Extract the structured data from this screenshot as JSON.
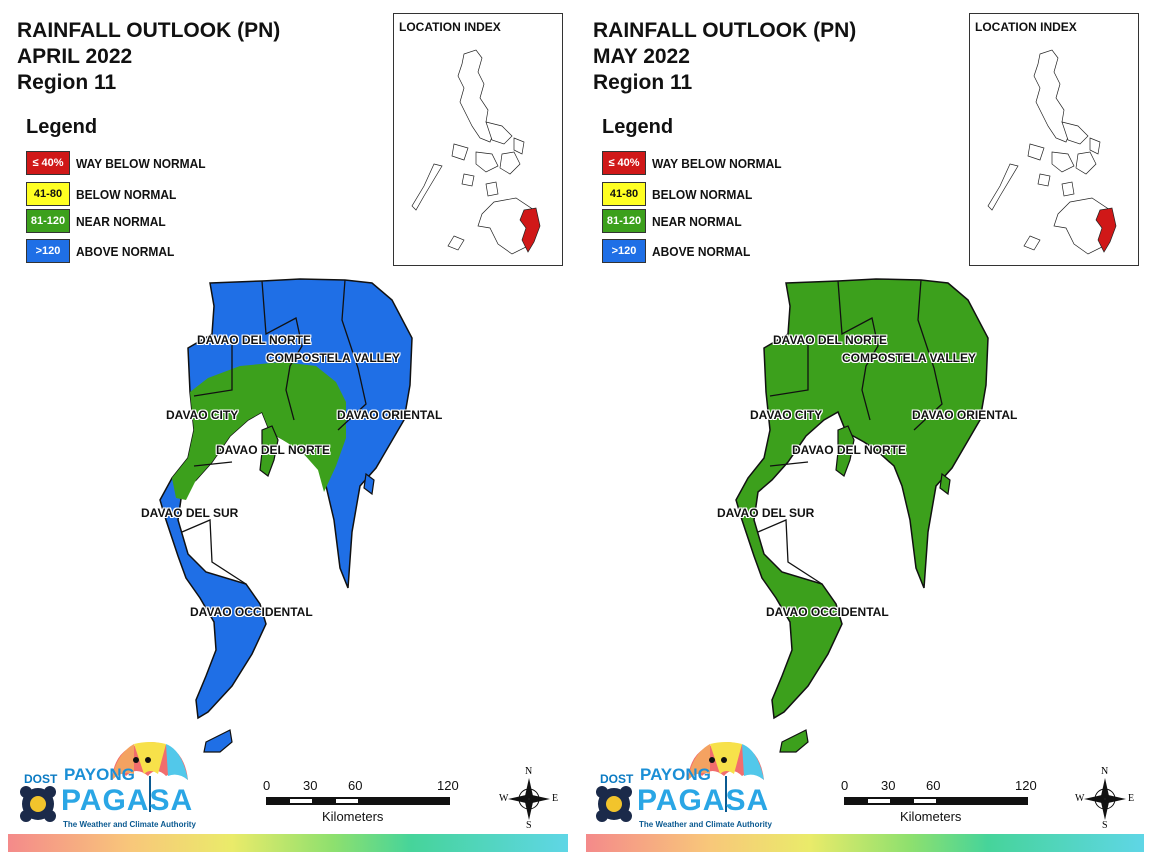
{
  "panels": [
    {
      "title_line1": "RAINFALL OUTLOOK (PN)",
      "title_line2": "APRIL 2022",
      "title_line3": "Region 11",
      "legend_heading": "Legend",
      "legend": [
        {
          "swatch": "≤ 40%",
          "label": "WAY BELOW NORMAL",
          "color": "#d01818"
        },
        {
          "swatch": "41-80",
          "label": "BELOW NORMAL",
          "color": "#ffff22"
        },
        {
          "swatch": "81-120",
          "label": "NEAR NORMAL",
          "color": "#3ca01c"
        },
        {
          "swatch": ">120",
          "label": "ABOVE NORMAL",
          "color": "#1f6fe6"
        }
      ],
      "location_index": "LOCATION INDEX",
      "map_fill": "#1f6fe6",
      "map_secondary_fill": "#3ca01c",
      "labels": {
        "davao_del_norte_top": "DAVAO DEL NORTE",
        "compostela_valley": "COMPOSTELA VALLEY",
        "davao_city": "DAVAO CITY",
        "davao_oriental": "DAVAO ORIENTAL",
        "davao_del_norte_mid": "DAVAO DEL NORTE",
        "davao_del_sur": "DAVAO DEL SUR",
        "davao_occidental": "DAVAO OCCIDENTAL"
      },
      "scale": {
        "t0": "0",
        "t1": "30",
        "t2": "60",
        "t3": "120",
        "units": "Kilometers"
      },
      "logo": {
        "dost": "DOST",
        "payong": "PAYONG",
        "pagasa": "PAGASA",
        "tagline": "The Weather and Climate Authority"
      },
      "compass": {
        "n": "N",
        "s": "S",
        "e": "E",
        "w": "W"
      }
    },
    {
      "title_line1": "RAINFALL OUTLOOK (PN)",
      "title_line2": "MAY 2022",
      "title_line3": "Region 11",
      "legend_heading": "Legend",
      "legend": [
        {
          "swatch": "≤ 40%",
          "label": "WAY BELOW NORMAL",
          "color": "#d01818"
        },
        {
          "swatch": "41-80",
          "label": "BELOW NORMAL",
          "color": "#ffff22"
        },
        {
          "swatch": "81-120",
          "label": "NEAR NORMAL",
          "color": "#3ca01c"
        },
        {
          "swatch": ">120",
          "label": "ABOVE NORMAL",
          "color": "#1f6fe6"
        }
      ],
      "location_index": "LOCATION INDEX",
      "map_fill": "#3ca01c",
      "map_secondary_fill": "#3ca01c",
      "labels": {
        "davao_del_norte_top": "DAVAO DEL NORTE",
        "compostela_valley": "COMPOSTELA VALLEY",
        "davao_city": "DAVAO CITY",
        "davao_oriental": "DAVAO ORIENTAL",
        "davao_del_norte_mid": "DAVAO DEL NORTE",
        "davao_del_sur": "DAVAO DEL SUR",
        "davao_occidental": "DAVAO OCCIDENTAL"
      },
      "scale": {
        "t0": "0",
        "t1": "30",
        "t2": "60",
        "t3": "120",
        "units": "Kilometers"
      },
      "logo": {
        "dost": "DOST",
        "payong": "PAYONG",
        "pagasa": "PAGASA",
        "tagline": "The Weather and Climate Authority"
      },
      "compass": {
        "n": "N",
        "s": "S",
        "e": "E",
        "w": "W"
      }
    }
  ]
}
